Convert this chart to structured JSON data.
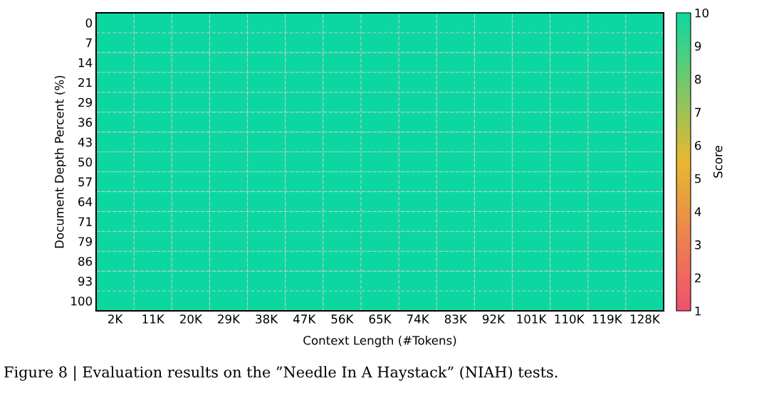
{
  "chart_data": {
    "type": "heatmap",
    "xlabel": "Context Length (#Tokens)",
    "ylabel": "Document Depth Percent (%)",
    "clabel": "Score",
    "categories": [
      "2K",
      "11K",
      "20K",
      "29K",
      "38K",
      "47K",
      "56K",
      "65K",
      "74K",
      "83K",
      "92K",
      "101K",
      "110K",
      "119K",
      "128K"
    ],
    "y_categories": [
      "0",
      "7",
      "14",
      "21",
      "29",
      "36",
      "43",
      "50",
      "57",
      "64",
      "71",
      "79",
      "86",
      "93",
      "100"
    ],
    "cells": [
      [
        10,
        10,
        10,
        10,
        10,
        10,
        10,
        10,
        10,
        10,
        10,
        10,
        10,
        10,
        10
      ],
      [
        10,
        10,
        10,
        10,
        10,
        10,
        10,
        10,
        10,
        10,
        10,
        10,
        10,
        10,
        10
      ],
      [
        10,
        10,
        10,
        10,
        10,
        10,
        10,
        10,
        10,
        10,
        10,
        10,
        10,
        10,
        10
      ],
      [
        10,
        10,
        10,
        10,
        10,
        10,
        10,
        10,
        10,
        10,
        10,
        10,
        10,
        10,
        10
      ],
      [
        10,
        10,
        10,
        10,
        10,
        10,
        10,
        10,
        10,
        10,
        10,
        10,
        10,
        10,
        10
      ],
      [
        10,
        10,
        10,
        10,
        10,
        10,
        10,
        10,
        10,
        10,
        10,
        10,
        10,
        10,
        10
      ],
      [
        10,
        10,
        10,
        10,
        10,
        10,
        10,
        10,
        10,
        10,
        10,
        10,
        10,
        10,
        10
      ],
      [
        10,
        10,
        10,
        10,
        10,
        10,
        10,
        10,
        10,
        10,
        10,
        10,
        10,
        10,
        10
      ],
      [
        10,
        10,
        10,
        10,
        10,
        10,
        10,
        10,
        10,
        10,
        10,
        10,
        10,
        10,
        10
      ],
      [
        10,
        10,
        10,
        10,
        10,
        10,
        10,
        10,
        10,
        10,
        10,
        10,
        10,
        10,
        10
      ],
      [
        10,
        10,
        10,
        10,
        10,
        10,
        10,
        10,
        10,
        10,
        10,
        10,
        10,
        10,
        10
      ],
      [
        10,
        10,
        10,
        10,
        10,
        10,
        10,
        10,
        10,
        10,
        10,
        10,
        10,
        10,
        10
      ],
      [
        10,
        10,
        10,
        10,
        10,
        10,
        10,
        10,
        10,
        10,
        10,
        10,
        10,
        10,
        10
      ],
      [
        10,
        10,
        10,
        10,
        10,
        10,
        10,
        10,
        10,
        10,
        10,
        10,
        10,
        10,
        10
      ],
      [
        10,
        10,
        10,
        10,
        10,
        10,
        10,
        10,
        10,
        10,
        10,
        10,
        10,
        10,
        10
      ]
    ],
    "colors": [
      "#f0506e",
      "#e8b830",
      "#0dd7a0"
    ],
    "clim": [
      1,
      10
    ],
    "cticks": [
      1,
      2,
      3,
      4,
      5,
      6,
      7,
      8,
      9,
      10
    ],
    "grid": true,
    "annotations": [
      "Figure 8 | Evaluation results on the ”Needle In A Haystack” (NIAH) tests."
    ]
  }
}
